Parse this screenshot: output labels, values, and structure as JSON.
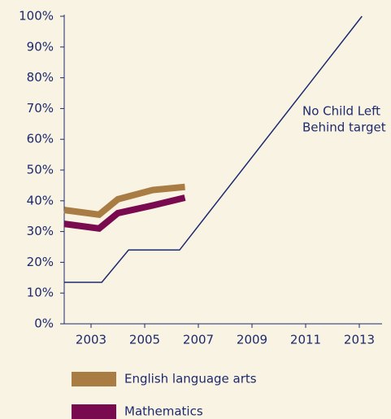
{
  "chart_data": {
    "type": "line",
    "annotation": [
      "No Child Left",
      "Behind target"
    ],
    "xlim": [
      2002,
      2014
    ],
    "xticks": [
      2003,
      2005,
      2007,
      2009,
      2011,
      2013
    ],
    "ylim": [
      0,
      100
    ],
    "yticks": [
      {
        "value": 0,
        "label": "0%"
      },
      {
        "value": 10,
        "label": "10%"
      },
      {
        "value": 20,
        "label": "20%"
      },
      {
        "value": 30,
        "label": "30%"
      },
      {
        "value": 40,
        "label": "40%"
      },
      {
        "value": 50,
        "label": "50%"
      },
      {
        "value": 60,
        "label": "60%"
      },
      {
        "value": 70,
        "label": "70%"
      },
      {
        "value": 80,
        "label": "80%"
      },
      {
        "value": 90,
        "label": "90%"
      },
      {
        "value": 100,
        "label": "100%"
      }
    ],
    "series": [
      {
        "name": "English language arts",
        "color": "#a97c43",
        "x": [
          2002,
          2003.3,
          2004.0,
          2005.3,
          2006.5
        ],
        "values": [
          37,
          35.5,
          40.5,
          43.5,
          44.5
        ]
      },
      {
        "name": "Mathematics",
        "color": "#790a4f",
        "x": [
          2002,
          2003.3,
          2004.0,
          2005.3,
          2006.5
        ],
        "values": [
          32.5,
          31,
          36,
          38.5,
          41
        ]
      },
      {
        "color": "#1d2a6e",
        "x": [
          2002,
          2003.4,
          2004.4,
          2006.3,
          2013.1
        ],
        "values": [
          13.5,
          13.5,
          24,
          24,
          100
        ]
      }
    ]
  }
}
